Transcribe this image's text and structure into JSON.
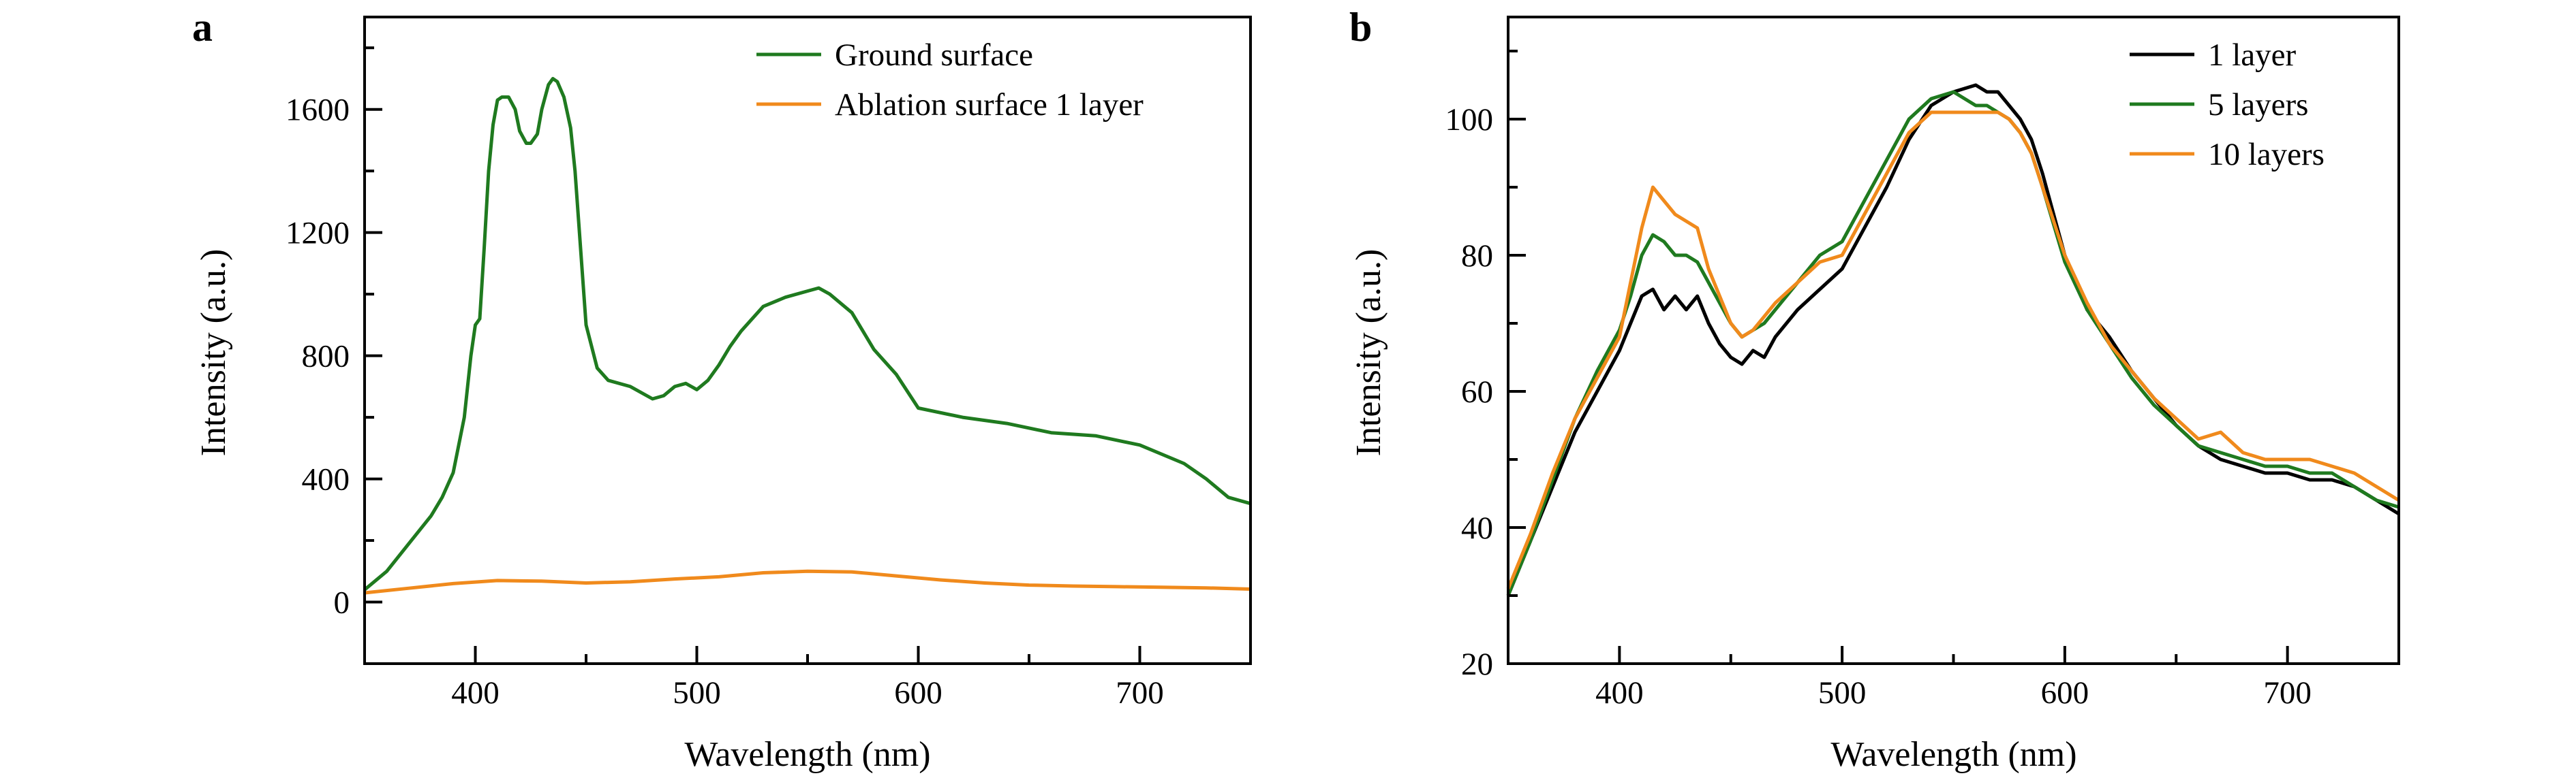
{
  "figure": {
    "panels": [
      "a",
      "b"
    ]
  },
  "colors": {
    "green": "#1f7a1f",
    "orange": "#f08a1c",
    "black": "#000000",
    "axis": "#000000",
    "background": "#ffffff"
  },
  "chart_data": [
    {
      "panel": "a",
      "type": "line",
      "title": "",
      "xlabel": "Wavelength (nm)",
      "ylabel": "Intensity (a.u.)",
      "xlim": [
        350,
        750
      ],
      "ylim": [
        -200,
        1900
      ],
      "xticks": [
        400,
        500,
        600,
        700
      ],
      "yticks": [
        0,
        400,
        800,
        1200,
        1600
      ],
      "xtick_labels": [
        "400",
        "500",
        "600",
        "700"
      ],
      "ytick_labels": [
        "0",
        "400",
        "800",
        "1200",
        "1600"
      ],
      "grid": false,
      "legend": "top-right",
      "series": [
        {
          "name": "Ground surface",
          "color": "green",
          "x": [
            350,
            360,
            370,
            380,
            385,
            390,
            395,
            398,
            400,
            402,
            404,
            406,
            408,
            410,
            412,
            415,
            418,
            420,
            423,
            425,
            428,
            430,
            433,
            435,
            437,
            440,
            443,
            445,
            448,
            450,
            455,
            460,
            470,
            480,
            485,
            490,
            495,
            500,
            505,
            510,
            515,
            520,
            530,
            540,
            550,
            555,
            560,
            570,
            580,
            590,
            600,
            620,
            640,
            660,
            680,
            700,
            720,
            730,
            740,
            750
          ],
          "y": [
            40,
            100,
            190,
            280,
            340,
            420,
            600,
            800,
            900,
            920,
            1150,
            1400,
            1550,
            1630,
            1640,
            1640,
            1600,
            1530,
            1490,
            1490,
            1520,
            1600,
            1680,
            1700,
            1690,
            1640,
            1540,
            1400,
            1100,
            900,
            760,
            720,
            700,
            660,
            670,
            700,
            710,
            690,
            720,
            770,
            830,
            880,
            960,
            990,
            1010,
            1020,
            1000,
            940,
            820,
            740,
            630,
            600,
            580,
            550,
            540,
            510,
            450,
            400,
            340,
            320
          ]
        },
        {
          "name": "Ablation surface 1 layer",
          "color": "orange",
          "x": [
            350,
            370,
            390,
            410,
            430,
            450,
            470,
            490,
            510,
            530,
            550,
            570,
            590,
            610,
            630,
            650,
            670,
            690,
            710,
            730,
            750
          ],
          "y": [
            30,
            45,
            60,
            70,
            68,
            62,
            66,
            75,
            82,
            95,
            100,
            98,
            85,
            72,
            62,
            55,
            52,
            50,
            48,
            46,
            42
          ]
        }
      ]
    },
    {
      "panel": "b",
      "type": "line",
      "title": "",
      "xlabel": "Wavelength (nm)",
      "ylabel": "Intensity (a.u.)",
      "xlim": [
        350,
        750
      ],
      "ylim": [
        20,
        115
      ],
      "xticks": [
        400,
        500,
        600,
        700
      ],
      "yticks": [
        20,
        40,
        60,
        80,
        100
      ],
      "xtick_labels": [
        "400",
        "500",
        "600",
        "700"
      ],
      "ytick_labels": [
        "20",
        "40",
        "60",
        "80",
        "100"
      ],
      "grid": false,
      "legend": "top-right",
      "series": [
        {
          "name": "1 layer",
          "color": "black",
          "x": [
            350,
            360,
            370,
            380,
            390,
            400,
            405,
            410,
            415,
            420,
            425,
            430,
            435,
            440,
            445,
            450,
            455,
            460,
            465,
            470,
            480,
            490,
            500,
            510,
            520,
            530,
            540,
            550,
            560,
            565,
            570,
            575,
            580,
            585,
            590,
            600,
            610,
            620,
            630,
            640,
            650,
            660,
            670,
            680,
            690,
            700,
            710,
            720,
            730,
            740,
            750
          ],
          "y": [
            30,
            38,
            46,
            54,
            60,
            66,
            70,
            74,
            75,
            72,
            74,
            72,
            74,
            70,
            67,
            65,
            64,
            66,
            65,
            68,
            72,
            75,
            78,
            84,
            90,
            97,
            102,
            104,
            105,
            104,
            104,
            102,
            100,
            97,
            92,
            80,
            72,
            68,
            63,
            59,
            55,
            52,
            50,
            49,
            48,
            48,
            47,
            47,
            46,
            44,
            42
          ]
        },
        {
          "name": "5 layers",
          "color": "green",
          "x": [
            350,
            360,
            370,
            380,
            390,
            400,
            405,
            410,
            415,
            420,
            425,
            430,
            435,
            440,
            445,
            450,
            455,
            460,
            465,
            470,
            480,
            490,
            500,
            510,
            520,
            530,
            540,
            550,
            560,
            565,
            570,
            575,
            580,
            585,
            590,
            600,
            610,
            620,
            630,
            640,
            650,
            660,
            670,
            680,
            690,
            700,
            710,
            720,
            730,
            740,
            750
          ],
          "y": [
            30,
            38,
            47,
            56,
            63,
            69,
            74,
            80,
            83,
            82,
            80,
            80,
            79,
            76,
            73,
            70,
            68,
            69,
            70,
            72,
            76,
            80,
            82,
            88,
            94,
            100,
            103,
            104,
            102,
            102,
            101,
            100,
            98,
            95,
            90,
            79,
            72,
            67,
            62,
            58,
            55,
            52,
            51,
            50,
            49,
            49,
            48,
            48,
            46,
            44,
            43
          ]
        },
        {
          "name": "10 layers",
          "color": "orange",
          "x": [
            350,
            360,
            370,
            380,
            390,
            400,
            405,
            410,
            415,
            420,
            425,
            430,
            435,
            440,
            445,
            450,
            455,
            460,
            465,
            470,
            480,
            490,
            500,
            510,
            520,
            530,
            540,
            550,
            560,
            565,
            570,
            575,
            580,
            585,
            590,
            600,
            610,
            620,
            630,
            640,
            650,
            660,
            670,
            680,
            690,
            700,
            710,
            720,
            730,
            740,
            750
          ],
          "y": [
            31,
            39,
            48,
            56,
            62,
            68,
            76,
            84,
            90,
            88,
            86,
            85,
            84,
            78,
            74,
            70,
            68,
            69,
            71,
            73,
            76,
            79,
            80,
            86,
            92,
            98,
            101,
            101,
            101,
            101,
            101,
            100,
            98,
            95,
            90,
            80,
            73,
            67,
            63,
            59,
            56,
            53,
            54,
            51,
            50,
            50,
            50,
            49,
            48,
            46,
            44
          ]
        }
      ]
    }
  ]
}
